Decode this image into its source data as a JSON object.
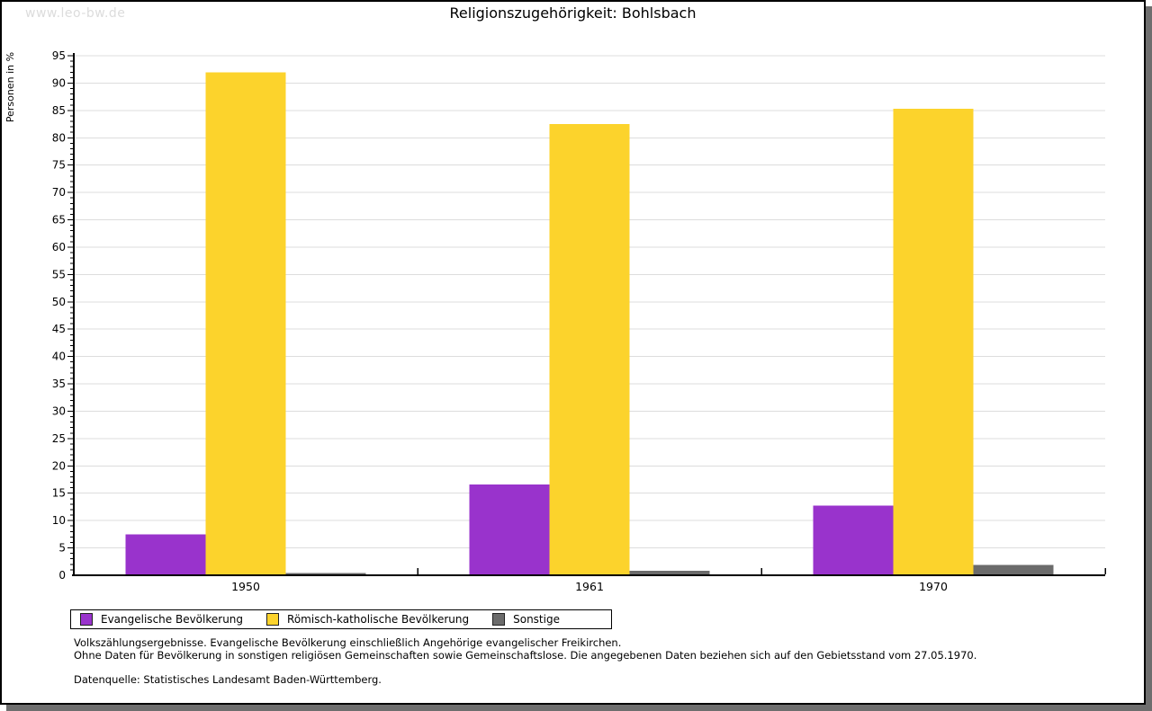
{
  "watermark": "www.leo-bw.de",
  "title": "Religionszugehörigkeit: Bohlsbach",
  "chart_data": {
    "type": "bar",
    "title": "Religionszugehörigkeit: Bohlsbach",
    "ylabel": "Personen in %",
    "xlabel": "",
    "categories": [
      "1950",
      "1961",
      "1970"
    ],
    "series": [
      {
        "name": "Evangelische Bevölkerung",
        "color": "#9933CC",
        "values": [
          7.5,
          16.6,
          12.7
        ]
      },
      {
        "name": "Römisch-katholische Bevölkerung",
        "color": "#FCD32C",
        "values": [
          92.0,
          82.5,
          85.3
        ]
      },
      {
        "name": "Sonstige",
        "color": "#6B6B6B",
        "values": [
          0.4,
          0.8,
          1.9
        ]
      }
    ],
    "ylim": [
      0,
      95
    ],
    "y_major_step": 5,
    "y_minor_step": 1,
    "grid": "horizontal-major",
    "gridline_color": "#dddddd",
    "legend_position": "bottom-left"
  },
  "footnotes": {
    "line1": "Volkszählungsergebnisse. Evangelische Bevölkerung einschließlich Angehörige evangelischer Freikirchen.",
    "line2": "Ohne Daten für Bevölkerung in sonstigen religiösen Gemeinschaften sowie Gemeinschaftslose. Die angegebenen Daten beziehen sich auf den Gebietsstand vom 27.05.1970.",
    "source": "Datenquelle: Statistisches Landesamt Baden-Württemberg."
  }
}
